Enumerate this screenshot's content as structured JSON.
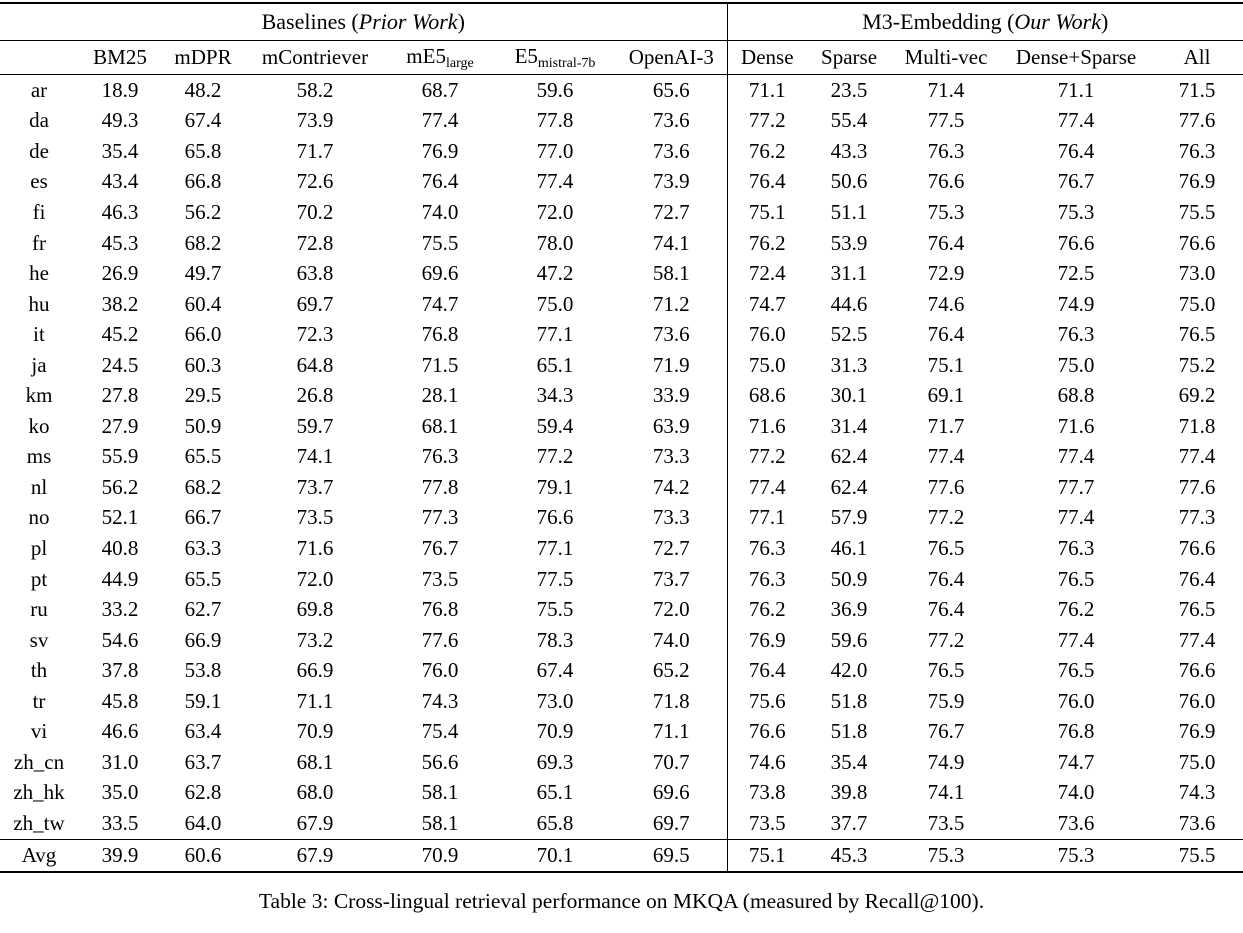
{
  "table": {
    "groups": [
      {
        "prefix": "Baselines (",
        "italic": "Prior Work",
        "suffix": ")"
      },
      {
        "prefix": "M3-Embedding (",
        "italic": "Our Work",
        "suffix": ")"
      }
    ],
    "columns": [
      {
        "base": "BM25"
      },
      {
        "base": "mDPR"
      },
      {
        "base": "mContriever"
      },
      {
        "base": "mE5",
        "sub": "large"
      },
      {
        "base": "E5",
        "sub": "mistral-7b"
      },
      {
        "base": "OpenAI-3"
      },
      {
        "base": "Dense"
      },
      {
        "base": "Sparse"
      },
      {
        "base": "Multi-vec"
      },
      {
        "base": "Dense+Sparse"
      },
      {
        "base": "All"
      }
    ],
    "rows": [
      {
        "lang": "ar",
        "values": [
          "18.9",
          "48.2",
          "58.2",
          "68.7",
          "59.6",
          "65.6",
          "71.1",
          "23.5",
          "71.4",
          "71.1",
          "71.5"
        ],
        "bold": [
          10
        ]
      },
      {
        "lang": "da",
        "values": [
          "49.3",
          "67.4",
          "73.9",
          "77.4",
          "77.8",
          "73.6",
          "77.2",
          "55.4",
          "77.5",
          "77.4",
          "77.6"
        ],
        "bold": [
          4
        ]
      },
      {
        "lang": "de",
        "values": [
          "35.4",
          "65.8",
          "71.7",
          "76.9",
          "77.0",
          "73.6",
          "76.2",
          "43.3",
          "76.3",
          "76.4",
          "76.3"
        ],
        "bold": [
          4
        ]
      },
      {
        "lang": "es",
        "values": [
          "43.4",
          "66.8",
          "72.6",
          "76.4",
          "77.4",
          "73.9",
          "76.4",
          "50.6",
          "76.6",
          "76.7",
          "76.9"
        ],
        "bold": [
          4
        ]
      },
      {
        "lang": "fi",
        "values": [
          "46.3",
          "56.2",
          "70.2",
          "74.0",
          "72.0",
          "72.7",
          "75.1",
          "51.1",
          "75.3",
          "75.3",
          "75.5"
        ],
        "bold": [
          10
        ]
      },
      {
        "lang": "fr",
        "values": [
          "45.3",
          "68.2",
          "72.8",
          "75.5",
          "78.0",
          "74.1",
          "76.2",
          "53.9",
          "76.4",
          "76.6",
          "76.6"
        ],
        "bold": [
          4
        ]
      },
      {
        "lang": "he",
        "values": [
          "26.9",
          "49.7",
          "63.8",
          "69.6",
          "47.2",
          "58.1",
          "72.4",
          "31.1",
          "72.9",
          "72.5",
          "73.0"
        ],
        "bold": [
          10
        ]
      },
      {
        "lang": "hu",
        "values": [
          "38.2",
          "60.4",
          "69.7",
          "74.7",
          "75.0",
          "71.2",
          "74.7",
          "44.6",
          "74.6",
          "74.9",
          "75.0"
        ],
        "bold": [
          4,
          10
        ]
      },
      {
        "lang": "it",
        "values": [
          "45.2",
          "66.0",
          "72.3",
          "76.8",
          "77.1",
          "73.6",
          "76.0",
          "52.5",
          "76.4",
          "76.3",
          "76.5"
        ],
        "bold": [
          4
        ]
      },
      {
        "lang": "ja",
        "values": [
          "24.5",
          "60.3",
          "64.8",
          "71.5",
          "65.1",
          "71.9",
          "75.0",
          "31.3",
          "75.1",
          "75.0",
          "75.2"
        ],
        "bold": [
          10
        ]
      },
      {
        "lang": "km",
        "values": [
          "27.8",
          "29.5",
          "26.8",
          "28.1",
          "34.3",
          "33.9",
          "68.6",
          "30.1",
          "69.1",
          "68.8",
          "69.2"
        ],
        "bold": [
          10
        ]
      },
      {
        "lang": "ko",
        "values": [
          "27.9",
          "50.9",
          "59.7",
          "68.1",
          "59.4",
          "63.9",
          "71.6",
          "31.4",
          "71.7",
          "71.6",
          "71.8"
        ],
        "bold": [
          10
        ]
      },
      {
        "lang": "ms",
        "values": [
          "55.9",
          "65.5",
          "74.1",
          "76.3",
          "77.2",
          "73.3",
          "77.2",
          "62.4",
          "77.4",
          "77.4",
          "77.4"
        ],
        "bold": [
          8,
          9,
          10
        ]
      },
      {
        "lang": "nl",
        "values": [
          "56.2",
          "68.2",
          "73.7",
          "77.8",
          "79.1",
          "74.2",
          "77.4",
          "62.4",
          "77.6",
          "77.7",
          "77.6"
        ],
        "bold": [
          4
        ]
      },
      {
        "lang": "no",
        "values": [
          "52.1",
          "66.7",
          "73.5",
          "77.3",
          "76.6",
          "73.3",
          "77.1",
          "57.9",
          "77.2",
          "77.4",
          "77.3"
        ],
        "bold": [
          9
        ]
      },
      {
        "lang": "pl",
        "values": [
          "40.8",
          "63.3",
          "71.6",
          "76.7",
          "77.1",
          "72.7",
          "76.3",
          "46.1",
          "76.5",
          "76.3",
          "76.6"
        ],
        "bold": [
          4
        ]
      },
      {
        "lang": "pt",
        "values": [
          "44.9",
          "65.5",
          "72.0",
          "73.5",
          "77.5",
          "73.7",
          "76.3",
          "50.9",
          "76.4",
          "76.5",
          "76.4"
        ],
        "bold": [
          4
        ]
      },
      {
        "lang": "ru",
        "values": [
          "33.2",
          "62.7",
          "69.8",
          "76.8",
          "75.5",
          "72.0",
          "76.2",
          "36.9",
          "76.4",
          "76.2",
          "76.5"
        ],
        "bold": [
          3
        ]
      },
      {
        "lang": "sv",
        "values": [
          "54.6",
          "66.9",
          "73.2",
          "77.6",
          "78.3",
          "74.0",
          "76.9",
          "59.6",
          "77.2",
          "77.4",
          "77.4"
        ],
        "bold": [
          4
        ]
      },
      {
        "lang": "th",
        "values": [
          "37.8",
          "53.8",
          "66.9",
          "76.0",
          "67.4",
          "65.2",
          "76.4",
          "42.0",
          "76.5",
          "76.5",
          "76.6"
        ],
        "bold": [
          10
        ]
      },
      {
        "lang": "tr",
        "values": [
          "45.8",
          "59.1",
          "71.1",
          "74.3",
          "73.0",
          "71.8",
          "75.6",
          "51.8",
          "75.9",
          "76.0",
          "76.0"
        ],
        "bold": [
          9,
          10
        ]
      },
      {
        "lang": "vi",
        "values": [
          "46.6",
          "63.4",
          "70.9",
          "75.4",
          "70.9",
          "71.1",
          "76.6",
          "51.8",
          "76.7",
          "76.8",
          "76.9"
        ],
        "bold": [
          10
        ]
      },
      {
        "lang": "zh_cn",
        "values": [
          "31.0",
          "63.7",
          "68.1",
          "56.6",
          "69.3",
          "70.7",
          "74.6",
          "35.4",
          "74.9",
          "74.7",
          "75.0"
        ],
        "bold": [
          10
        ]
      },
      {
        "lang": "zh_hk",
        "values": [
          "35.0",
          "62.8",
          "68.0",
          "58.1",
          "65.1",
          "69.6",
          "73.8",
          "39.8",
          "74.1",
          "74.0",
          "74.3"
        ],
        "bold": [
          10
        ]
      },
      {
        "lang": "zh_tw",
        "values": [
          "33.5",
          "64.0",
          "67.9",
          "58.1",
          "65.8",
          "69.7",
          "73.5",
          "37.7",
          "73.5",
          "73.6",
          "73.6"
        ],
        "bold": [
          9,
          10
        ]
      },
      {
        "lang": "Avg",
        "values": [
          "39.9",
          "60.6",
          "67.9",
          "70.9",
          "70.1",
          "69.5",
          "75.1",
          "45.3",
          "75.3",
          "75.3",
          "75.5"
        ],
        "bold": [
          10
        ]
      }
    ]
  },
  "caption": "Table 3: Cross-lingual retrieval performance on MKQA (measured by Recall@100)."
}
